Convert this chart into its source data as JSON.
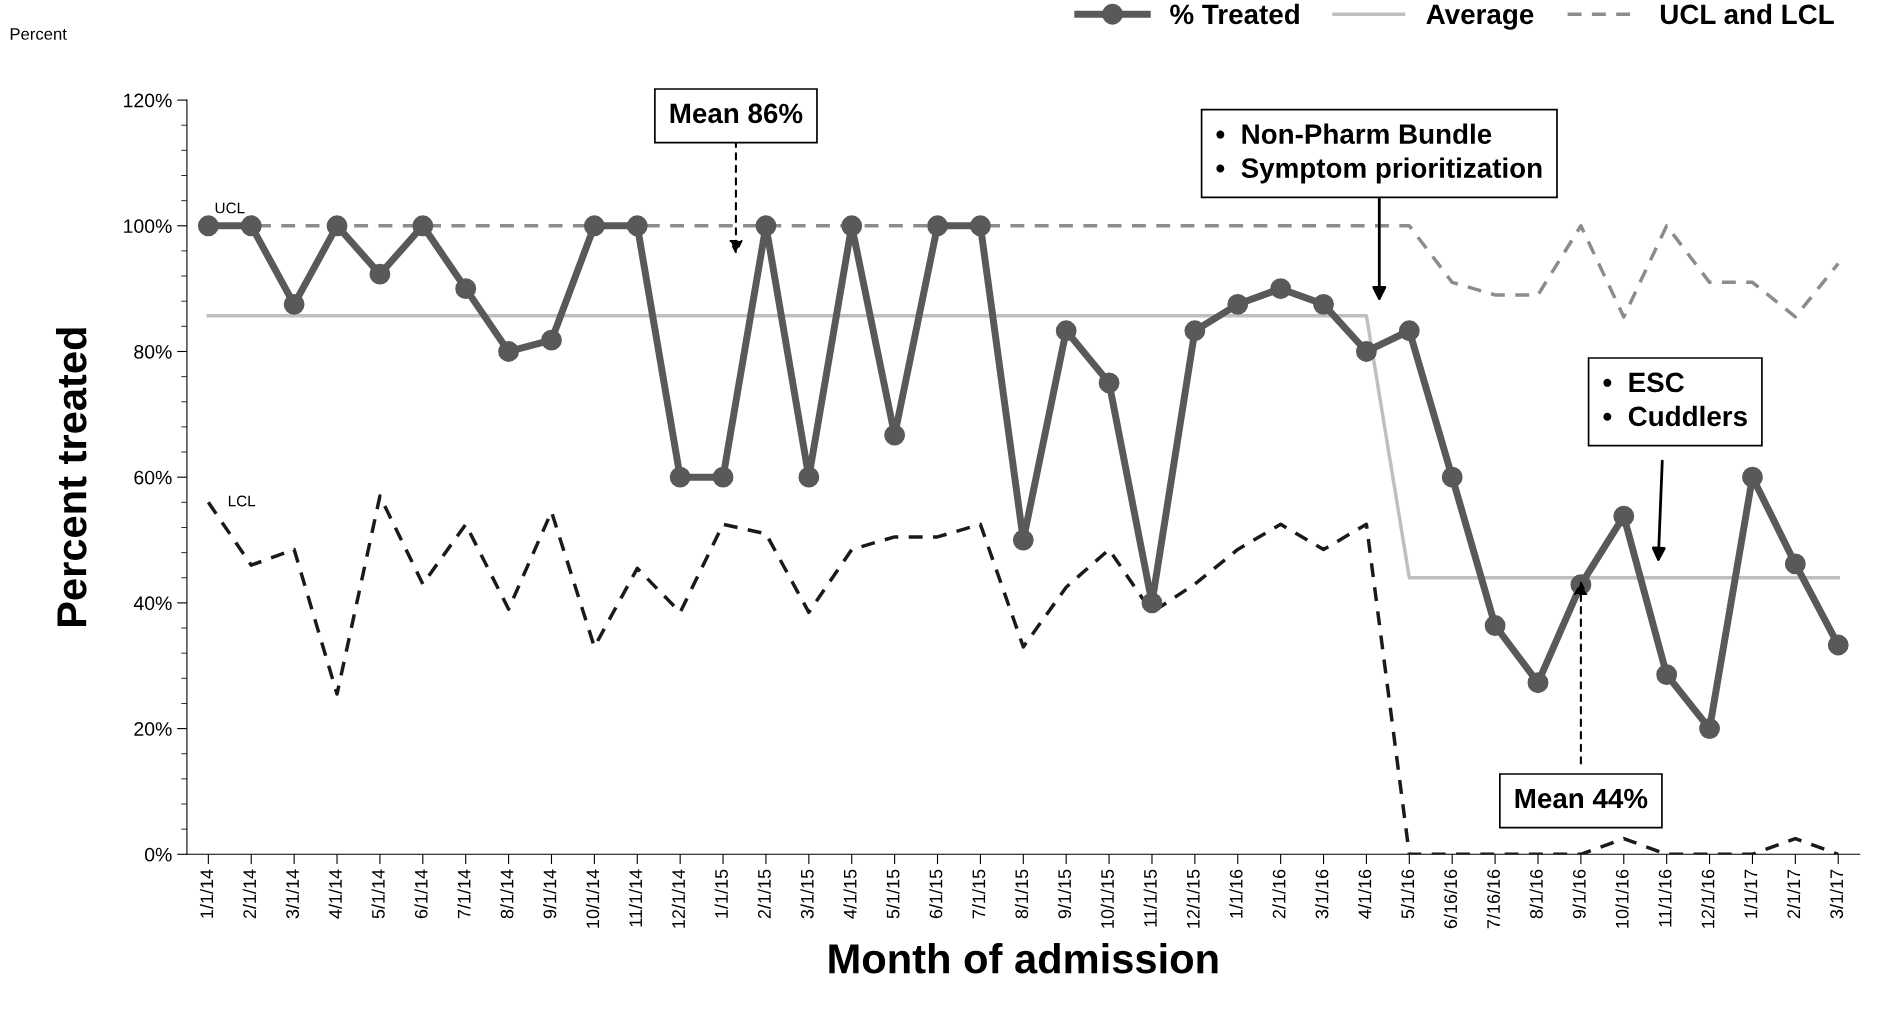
{
  "chart_data": {
    "type": "line",
    "xlabel": "Month of admission",
    "ylabel": "Percent treated",
    "categories": [
      "1/1/14",
      "2/1/14",
      "3/1/14",
      "4/1/14",
      "5/1/14",
      "6/1/14",
      "7/1/14",
      "8/1/14",
      "9/1/14",
      "10/1/14",
      "11/1/14",
      "12/1/14",
      "1/1/15",
      "2/1/15",
      "3/1/15",
      "4/1/15",
      "5/1/15",
      "6/1/15",
      "7/1/15",
      "8/1/15",
      "9/1/15",
      "10/1/15",
      "11/1/15",
      "12/1/15",
      "1/1/16",
      "2/1/16",
      "3/1/16",
      "4/1/16",
      "5/1/16",
      "6/16/16",
      "7/16/16",
      "8/1/16",
      "9/1/16",
      "10/1/16",
      "11/1/16",
      "12/1/16",
      "1/1/17",
      "2/1/17",
      "3/1/17"
    ],
    "series": [
      {
        "name": "% Treated",
        "color": "#595959",
        "marker": "circle",
        "line_style": "solid",
        "values": [
          100,
          100,
          87.5,
          100,
          92.3,
          100,
          90,
          80,
          81.8,
          100,
          100,
          60,
          60,
          100,
          60,
          100,
          66.7,
          100,
          100,
          50,
          83.3,
          75,
          40,
          83.3,
          87.5,
          90,
          87.5,
          80,
          83.3,
          60,
          36.4,
          27.3,
          42.9,
          53.8,
          28.6,
          20,
          60,
          46.2,
          33.3
        ]
      },
      {
        "name": "Average",
        "color": "#bfbfbf",
        "marker": "none",
        "line_style": "solid",
        "values": [
          85.7,
          85.7,
          85.7,
          85.7,
          85.7,
          85.7,
          85.7,
          85.7,
          85.7,
          85.7,
          85.7,
          85.7,
          85.7,
          85.7,
          85.7,
          85.7,
          85.7,
          85.7,
          85.7,
          85.7,
          85.7,
          85.7,
          85.7,
          85.7,
          85.7,
          85.7,
          85.7,
          85.7,
          44,
          44,
          44,
          44,
          44,
          44,
          44,
          44,
          44,
          44,
          44
        ]
      },
      {
        "name": "UCL and LCL",
        "color": "#8c8c8c",
        "marker": "none",
        "line_style": "dashed",
        "values": [
          100,
          100,
          100,
          100,
          100,
          100,
          100,
          100,
          100,
          100,
          100,
          100,
          100,
          100,
          100,
          100,
          100,
          100,
          100,
          100,
          100,
          100,
          100,
          100,
          100,
          100,
          100,
          100,
          100,
          91,
          89,
          89,
          100,
          85.5,
          100,
          91,
          91,
          85.5,
          94
        ]
      },
      {
        "color": "#1a1a1a",
        "marker": "none",
        "line_style": "dashed",
        "values": [
          56,
          46,
          48.5,
          25.5,
          57,
          43,
          52.5,
          39,
          54.5,
          33,
          45.5,
          38.5,
          52.5,
          51,
          38.5,
          48.5,
          50.5,
          50.5,
          52.5,
          33,
          42.5,
          48.5,
          38.5,
          43,
          48.5,
          52.5,
          48.5,
          52.5,
          0,
          0,
          0,
          0,
          0,
          2.5,
          0,
          0,
          0,
          2.5,
          0
        ]
      }
    ],
    "ylim": [
      0,
      120
    ],
    "yticks": [
      {
        "value": 0,
        "label": "0%"
      },
      {
        "value": 20,
        "label": "20%"
      },
      {
        "value": 40,
        "label": "40%"
      },
      {
        "value": 60,
        "label": "60%"
      },
      {
        "value": 80,
        "label": "80%"
      },
      {
        "value": 100,
        "label": "100%"
      },
      {
        "value": 120,
        "label": "120%"
      }
    ],
    "grid": false,
    "legend": "top right",
    "annotations": [
      "Percent",
      {
        "text": "UCL",
        "x": "1/1/14",
        "y": 100
      },
      {
        "text": "LCL",
        "x": "1/1/14",
        "y": 56
      },
      "Mean 86%",
      "•  Non-Pharm Bundle\n•  Symptom prioritization",
      "•  ESC\n•  Cuddlers",
      {
        "text": "Mean 44%",
        "x": "9/1/16",
        "y": 44
      }
    ]
  }
}
